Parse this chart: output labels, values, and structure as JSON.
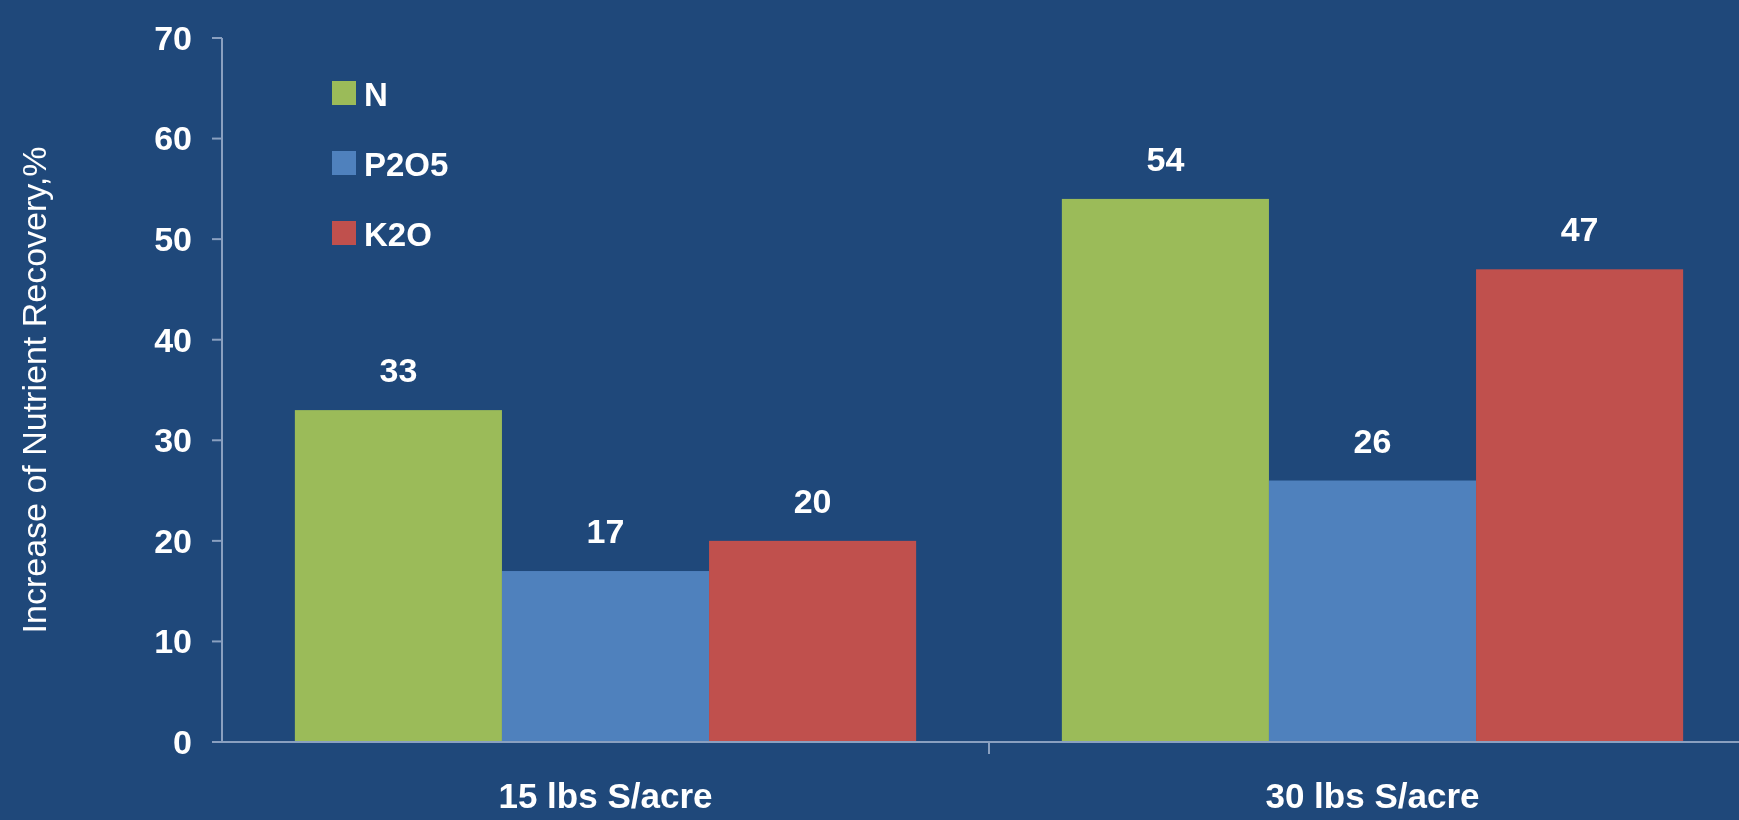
{
  "chart_data": {
    "type": "bar",
    "ylabel": "Increase of Nutrient Recovery,%",
    "categories": [
      "15 lbs S/acre",
      "30 lbs S/acre"
    ],
    "series": [
      {
        "name": "N",
        "color": "#9bbb59",
        "values": [
          33,
          54
        ]
      },
      {
        "name": "P2O5",
        "color": "#4f81bd",
        "values": [
          17,
          26
        ]
      },
      {
        "name": "K2O",
        "color": "#c0504d",
        "values": [
          20,
          47
        ]
      }
    ],
    "ylim": [
      0,
      70
    ],
    "yticks": [
      0,
      10,
      20,
      30,
      40,
      50,
      60,
      70
    ],
    "data_labels": true,
    "legend": "top left",
    "grid": false
  }
}
